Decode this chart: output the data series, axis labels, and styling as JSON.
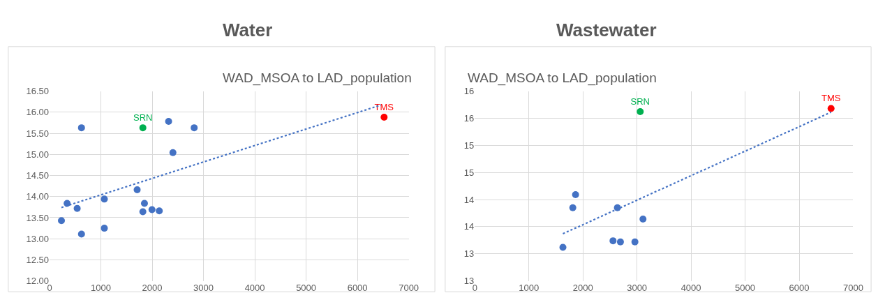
{
  "chart_data": [
    {
      "type": "scatter",
      "title": "Water",
      "subtitle": "WAD_MSOA to LAD_population",
      "grid": true,
      "legend": false,
      "marker": "circle",
      "xlim": [
        0,
        7000
      ],
      "xticks": [
        0,
        1000,
        2000,
        3000,
        4000,
        5000,
        6000,
        7000
      ],
      "ylim": [
        12,
        16.5
      ],
      "yticks": [
        {
          "value": 12,
          "label": "12.00"
        },
        {
          "value": 12.5,
          "label": "12.50"
        },
        {
          "value": 13,
          "label": "13.00"
        },
        {
          "value": 13.5,
          "label": "13.50"
        },
        {
          "value": 14,
          "label": "14.00"
        },
        {
          "value": 14.5,
          "label": "14.50"
        },
        {
          "value": 15,
          "label": "15.00"
        },
        {
          "value": 15.5,
          "label": "15.50"
        },
        {
          "value": 16,
          "label": "16.00"
        },
        {
          "value": 16.5,
          "label": "16.50"
        }
      ],
      "series": [
        {
          "color": "#4472c4",
          "x": [
            231,
            342,
            538,
            622,
            622,
            1067,
            1067,
            1707,
            1818,
            1849,
            1996,
            2138,
            2320,
            2404,
            2818
          ],
          "values": [
            13.43,
            13.84,
            13.72,
            15.63,
            13.11,
            13.94,
            13.25,
            14.16,
            13.64,
            13.84,
            13.69,
            13.66,
            15.78,
            15.04,
            15.63
          ]
        },
        {
          "name": "SRN",
          "color": "#00b050",
          "x": [
            1818
          ],
          "values": [
            15.63
          ]
        },
        {
          "name": "TMS",
          "color": "#ff0000",
          "x": [
            6520
          ],
          "values": [
            15.88
          ]
        },
        {
          "type": "line",
          "line_style": "dotted",
          "marker": "none",
          "color": "#4472c4",
          "x": [
            231,
            6460
          ],
          "values": [
            13.74,
            16.17
          ]
        }
      ]
    },
    {
      "type": "scatter",
      "title": "Wastewater",
      "subtitle": "WAD_MSOA to LAD_population",
      "grid": true,
      "legend": false,
      "marker": "circle",
      "xlim": [
        0,
        7000
      ],
      "xticks": [
        0,
        1000,
        2000,
        3000,
        4000,
        5000,
        6000,
        7000
      ],
      "ylim": [
        12.5,
        16
      ],
      "yticks": [
        {
          "value": 12.5,
          "label": "13"
        },
        {
          "value": 13,
          "label": "13"
        },
        {
          "value": 13.5,
          "label": "14"
        },
        {
          "value": 14,
          "label": "14"
        },
        {
          "value": 14.5,
          "label": "15"
        },
        {
          "value": 15,
          "label": "15"
        },
        {
          "value": 15.5,
          "label": "16"
        },
        {
          "value": 16,
          "label": "16"
        }
      ],
      "series": [
        {
          "color": "#4472c4",
          "x": [
            1630,
            1813,
            1864,
            2557,
            2638,
            2694,
            2962,
            3111
          ],
          "values": [
            13.12,
            13.85,
            14.09,
            13.24,
            13.85,
            13.22,
            13.22,
            13.64
          ]
        },
        {
          "name": "SRN",
          "color": "#00b050",
          "x": [
            3060
          ],
          "values": [
            15.62
          ]
        },
        {
          "name": "TMS",
          "color": "#ff0000",
          "x": [
            6590
          ],
          "values": [
            15.68
          ]
        },
        {
          "type": "line",
          "line_style": "dotted",
          "marker": "none",
          "color": "#4472c4",
          "x": [
            1630,
            6590
          ],
          "values": [
            13.37,
            15.61
          ]
        }
      ]
    }
  ]
}
